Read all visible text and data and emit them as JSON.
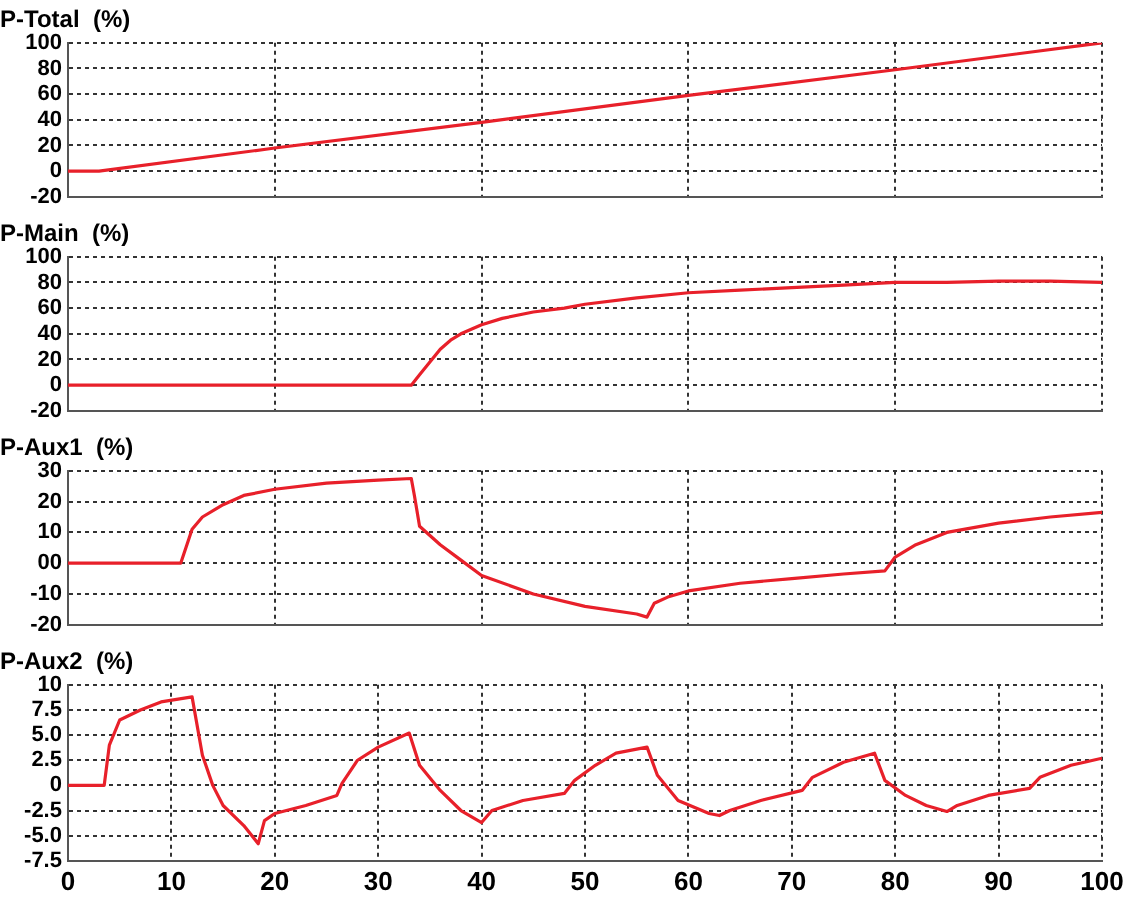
{
  "chart_data": [
    {
      "type": "line",
      "title": "P-Total  (%)",
      "color": "#e8202a",
      "marker": "none",
      "grid": true,
      "tick_labels": "y",
      "xlim": [
        0,
        100
      ],
      "xticks": [
        {
          "value": 0,
          "label": null
        },
        {
          "value": 20,
          "label": null
        },
        {
          "value": 40,
          "label": null
        },
        {
          "value": 60,
          "label": null
        },
        {
          "value": 80,
          "label": null
        },
        {
          "value": 100,
          "label": null
        }
      ],
      "ylim": [
        -20,
        100
      ],
      "yticks": [
        -20,
        0,
        20,
        40,
        60,
        80,
        100
      ],
      "x": [
        0,
        3,
        20,
        40,
        60,
        80,
        100
      ],
      "values": [
        0,
        0,
        18,
        38,
        59,
        79,
        100
      ]
    },
    {
      "type": "line",
      "title": "P-Main  (%)",
      "color": "#e8202a",
      "marker": "none",
      "grid": true,
      "tick_labels": "y",
      "xlim": [
        0,
        100
      ],
      "xticks": [
        {
          "value": 0,
          "label": null
        },
        {
          "value": 20,
          "label": null
        },
        {
          "value": 40,
          "label": null
        },
        {
          "value": 60,
          "label": null
        },
        {
          "value": 80,
          "label": null
        },
        {
          "value": 100,
          "label": null
        }
      ],
      "ylim": [
        -20,
        100
      ],
      "yticks": [
        -20,
        0,
        20,
        40,
        60,
        80,
        100
      ],
      "x": [
        0,
        33.2,
        34,
        35,
        36,
        37,
        38,
        40,
        42,
        45,
        48,
        50,
        55,
        60,
        65,
        70,
        75,
        80,
        85,
        90,
        95,
        100
      ],
      "values": [
        0,
        0,
        8,
        18,
        28,
        35,
        40,
        47,
        52,
        57,
        60,
        63,
        68,
        72,
        74,
        76,
        78,
        80,
        80,
        81,
        81,
        80
      ]
    },
    {
      "type": "line",
      "title": "P-Aux1  (%)",
      "color": "#e8202a",
      "marker": "none",
      "grid": true,
      "tick_labels": "y",
      "xlim": [
        0,
        100
      ],
      "xticks": [
        {
          "value": 0,
          "label": null
        },
        {
          "value": 20,
          "label": null
        },
        {
          "value": 40,
          "label": null
        },
        {
          "value": 60,
          "label": null
        },
        {
          "value": 80,
          "label": null
        },
        {
          "value": 100,
          "label": null
        }
      ],
      "ylim": [
        -20,
        30
      ],
      "yticks": [
        -20,
        -10,
        {
          "value": 0,
          "label": "00"
        },
        10,
        20,
        30
      ],
      "x": [
        0,
        10.9,
        11.5,
        12,
        13,
        15,
        17,
        20,
        25,
        30,
        33.2,
        33.5,
        34,
        36,
        38,
        40,
        45,
        50,
        55,
        56,
        56.7,
        58,
        60,
        65,
        70,
        75,
        79,
        80,
        82,
        85,
        90,
        95,
        100
      ],
      "values": [
        0,
        0,
        6,
        11,
        15,
        19,
        22,
        24,
        26,
        27,
        27.5,
        22,
        12,
        6,
        1,
        -4,
        -10,
        -14,
        -16.5,
        -17.5,
        -13,
        -11,
        -9,
        -6.5,
        -5,
        -3.5,
        -2.5,
        2,
        6,
        10,
        13,
        15,
        16.5
      ]
    },
    {
      "type": "line",
      "title": "P-Aux2  (%)",
      "color": "#e8202a",
      "marker": "none",
      "grid": true,
      "xlim": [
        0,
        100
      ],
      "xticks": [
        0,
        10,
        20,
        30,
        40,
        50,
        60,
        70,
        80,
        90,
        100
      ],
      "ylim": [
        -7.5,
        10
      ],
      "yticks": [
        {
          "value": -7.5,
          "label": "-7.5"
        },
        {
          "value": -5,
          "label": "-5.0"
        },
        {
          "value": -2.5,
          "label": "-2.5"
        },
        0,
        {
          "value": 2.5,
          "label": "2.5"
        },
        {
          "value": 5,
          "label": "5.0"
        },
        {
          "value": 7.5,
          "label": "7.5"
        },
        10
      ],
      "x": [
        0,
        3.5,
        4,
        5,
        7,
        9,
        12,
        13,
        14,
        15,
        17,
        18.4,
        19,
        20,
        23,
        26,
        26.5,
        28,
        30,
        33,
        34,
        36,
        38,
        40,
        41,
        44,
        48,
        49,
        51,
        53,
        56,
        57,
        59,
        62,
        63,
        64,
        67,
        71,
        72,
        75,
        78,
        79,
        81,
        83,
        85,
        86,
        89,
        93,
        94,
        97,
        100
      ],
      "values": [
        0,
        0,
        4,
        6.5,
        7.5,
        8.3,
        8.8,
        3,
        0,
        -2,
        -4,
        -5.8,
        -3.5,
        -2.8,
        -2,
        -1,
        0.2,
        2.5,
        3.8,
        5.2,
        2,
        -0.5,
        -2.5,
        -3.7,
        -2.5,
        -1.5,
        -0.8,
        0.5,
        2,
        3.2,
        3.8,
        1,
        -1.5,
        -2.8,
        -3,
        -2.5,
        -1.5,
        -0.5,
        0.8,
        2.3,
        3.2,
        0.5,
        -1,
        -2,
        -2.6,
        -2,
        -1,
        -0.3,
        0.8,
        2,
        2.7
      ]
    }
  ]
}
